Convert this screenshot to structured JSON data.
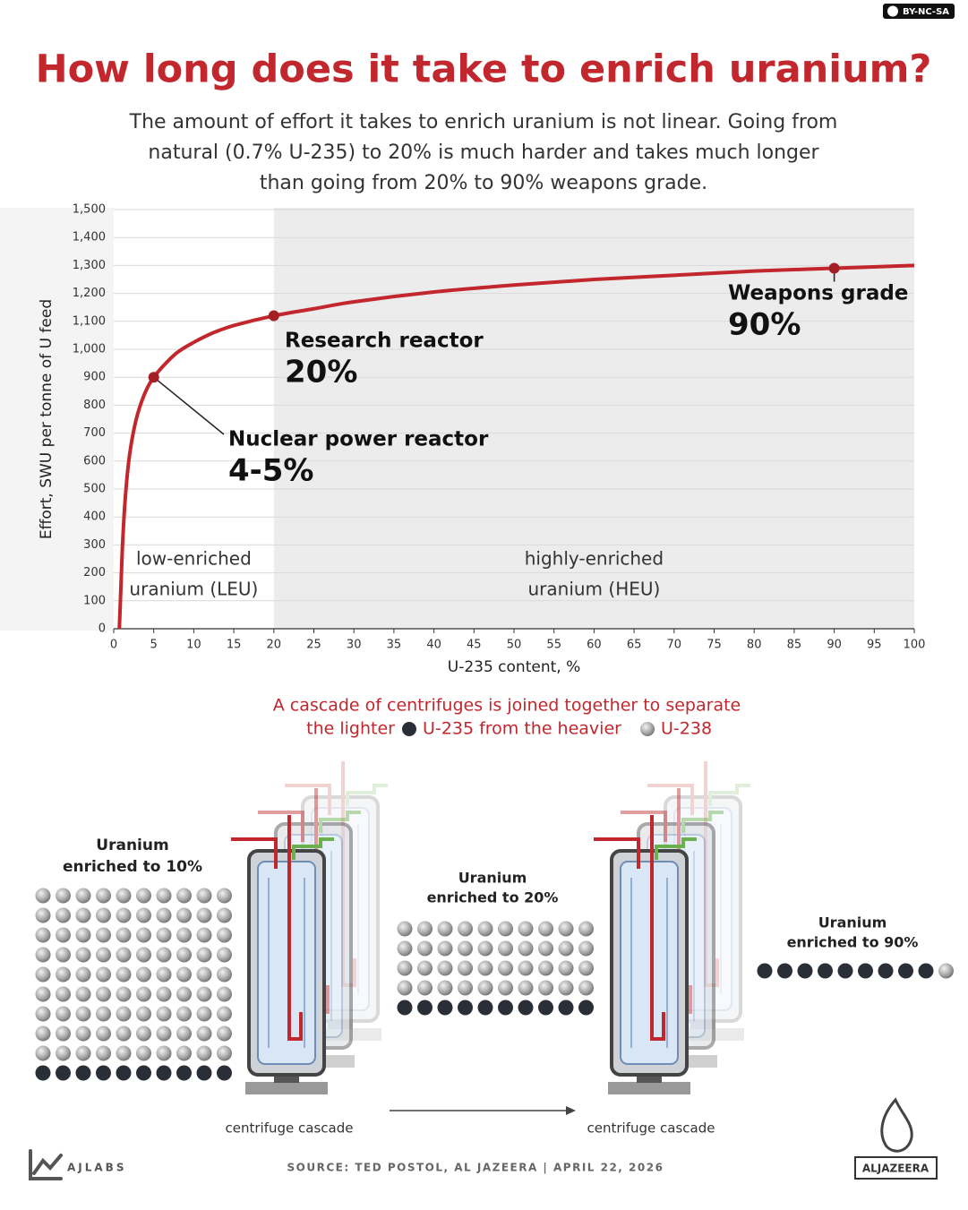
{
  "license": "BY-NC-SA",
  "chart_data": {
    "type": "line",
    "title": "How long does it take to enrich uranium?",
    "subtitle": [
      "The amount of effort it takes to enrich uranium is not linear. Going from",
      "natural (0.7% U-235) to 20% is much harder and takes much longer",
      "than going from 20% to 90% weapons grade."
    ],
    "x_label": "U-235 content, %",
    "y_label": "Effort, SWU per tonne of U feed",
    "x": [
      0.7,
      0.9,
      1.1,
      1.4,
      1.8,
      2.3,
      3,
      4,
      5,
      6.5,
      8,
      10,
      12.5,
      15,
      20,
      25,
      30,
      40,
      50,
      60,
      70,
      80,
      90,
      100
    ],
    "values": [
      0,
      150,
      300,
      450,
      580,
      680,
      770,
      850,
      900,
      950,
      990,
      1025,
      1060,
      1085,
      1120,
      1145,
      1170,
      1205,
      1230,
      1250,
      1265,
      1280,
      1290,
      1300
    ],
    "color": "#c1272d",
    "xlim": [
      0,
      100
    ],
    "xticks": [
      0,
      5,
      10,
      15,
      20,
      25,
      30,
      35,
      40,
      45,
      50,
      55,
      60,
      65,
      70,
      75,
      80,
      85,
      90,
      95,
      100
    ],
    "ylim": [
      0,
      1500
    ],
    "yticks": [
      0,
      100,
      200,
      300,
      400,
      500,
      600,
      700,
      800,
      900,
      {
        "value": 1000,
        "label": "1,000"
      },
      {
        "value": 1100,
        "label": "1,100"
      },
      {
        "value": 1200,
        "label": "1,200"
      },
      {
        "value": 1300,
        "label": "1,300"
      },
      {
        "value": 1400,
        "label": "1,400"
      },
      {
        "value": 1500,
        "label": "1,500"
      }
    ],
    "grid": true,
    "regions": [
      {
        "from": 0,
        "to": 20,
        "color": "#ffffff",
        "label": [
          "low-enriched",
          "uranium (LEU)"
        ]
      },
      {
        "from": 20,
        "to": 100,
        "color": "#ececec",
        "label": [
          "highly-enriched",
          "uranium (HEU)"
        ]
      }
    ],
    "annotations": [
      {
        "x": 5,
        "y": 900,
        "label": "Nuclear power reactor",
        "value_text": "4-5%"
      },
      {
        "x": 20,
        "y": 1120,
        "label": "Research reactor",
        "value_text": "20%"
      },
      {
        "x": 90,
        "y": 1290,
        "label": "Weapons grade",
        "value_text": "90%"
      }
    ]
  },
  "cascade": {
    "caption": "A cascade of centrifuges is joined together to separate",
    "caption_parts": [
      "the lighter",
      "U-235 from the heavier",
      "U-238"
    ],
    "groups": [
      {
        "label": [
          "Uranium",
          "enriched to 10%"
        ]
      },
      {
        "label": [
          "Uranium",
          "enriched to 20%"
        ]
      },
      {
        "label": [
          "Uranium",
          "enriched to 90%"
        ]
      }
    ],
    "cascade_labels": [
      "centrifuge cascade",
      "centrifuge cascade"
    ]
  },
  "footer": {
    "brand": "AJLABS",
    "source": "SOURCE:  TED POSTOL, AL JAZEERA  |  APRIL 22, 2026",
    "logo": "ALJAZEERA"
  }
}
